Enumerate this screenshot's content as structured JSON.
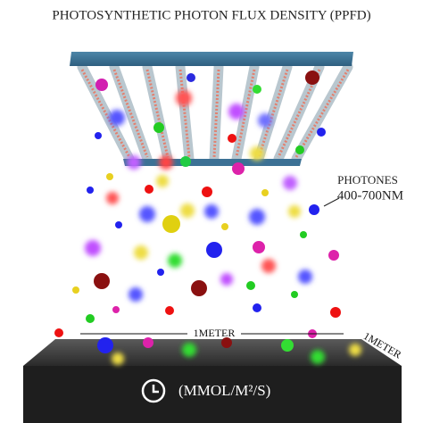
{
  "title": "PHOTOSYNTHETIC PHOTON FLUX DENSITY (PPFD)",
  "labels": {
    "photons": "PHOTONES",
    "wavelength": "400-700NM",
    "height": "1METER",
    "width": "1METER",
    "unit": "(MMOL/M²/S)"
  }
}
